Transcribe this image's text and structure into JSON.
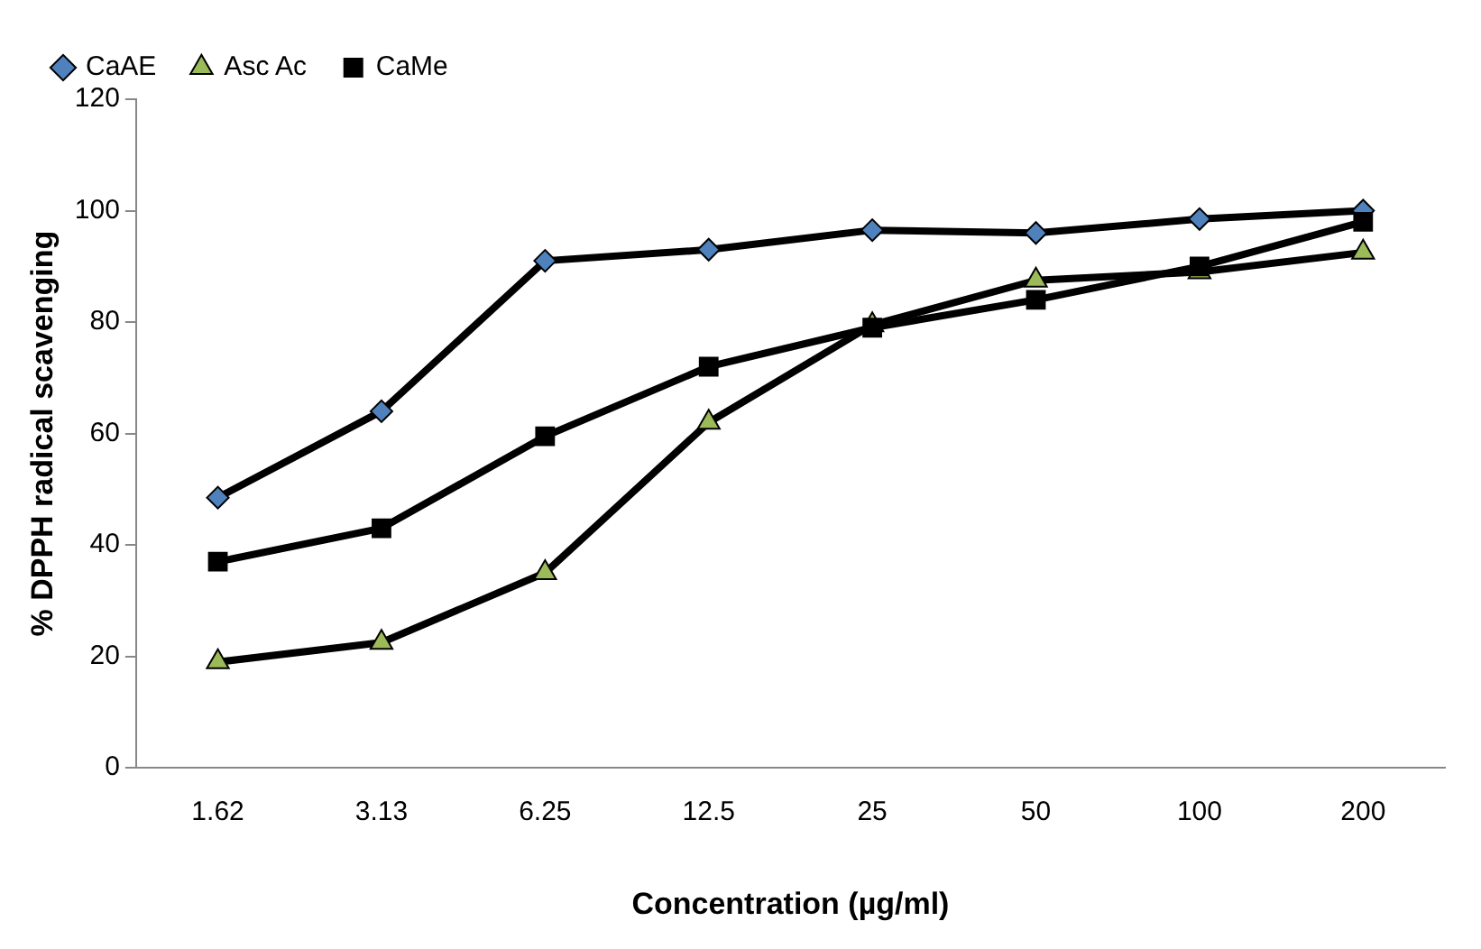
{
  "chart_data": {
    "type": "line",
    "xlabel": "Concentration (µg/ml)",
    "ylabel": "% DPPH radical scavenging",
    "categories": [
      "1.62",
      "3.13",
      "6.25",
      "12.5",
      "25",
      "50",
      "100",
      "200"
    ],
    "series": [
      {
        "name": "CaAE",
        "color": "#4f81bd",
        "marker": "diamond",
        "values": [
          48.5,
          64,
          91,
          93,
          96.5,
          96,
          98.5,
          100
        ]
      },
      {
        "name": "Asc Ac",
        "color": "#9bbb59",
        "marker": "triangle",
        "values": [
          19,
          22.5,
          35,
          62,
          79.5,
          87.5,
          89,
          92.5
        ]
      },
      {
        "name": "CaMe",
        "color": "#000000",
        "marker": "square",
        "values": [
          37,
          43,
          59.5,
          72,
          79,
          84,
          90,
          98
        ]
      }
    ],
    "ylim": [
      0,
      120
    ],
    "yticks": [
      0,
      20,
      40,
      60,
      80,
      100,
      120
    ],
    "grid": false,
    "legend": "top left",
    "line_style": "solid"
  }
}
